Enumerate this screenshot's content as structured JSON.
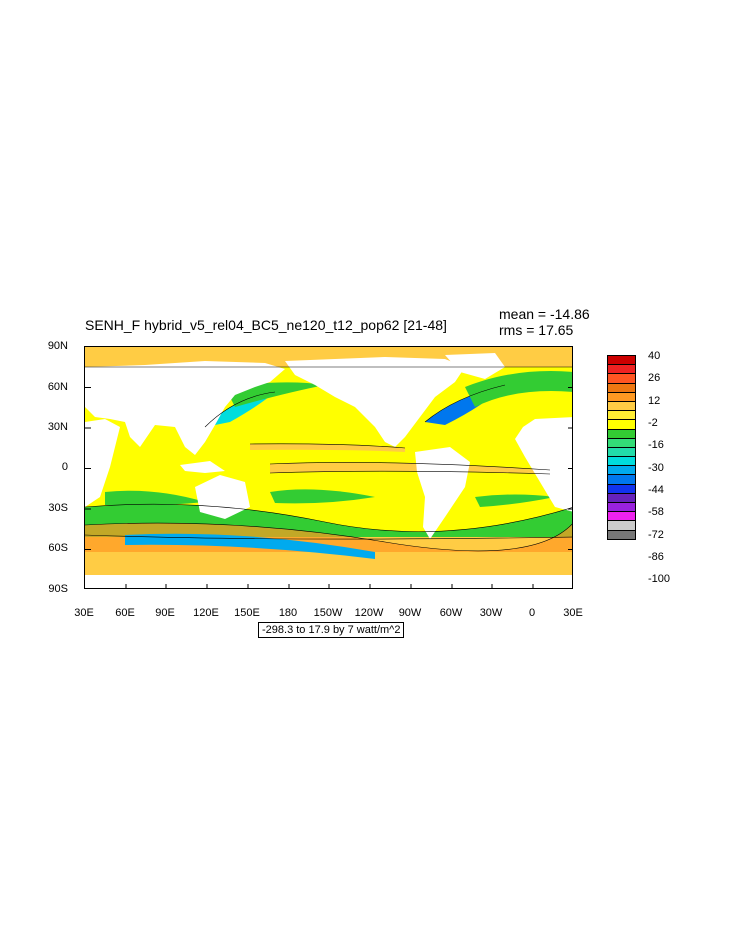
{
  "plot": {
    "title": "SENH_F hybrid_v5_rel04_BC5_ne120_t12_pop62 [21-48]",
    "mean": "mean = -14.86",
    "rms": "rms = 17.65",
    "range_label": "-298.3 to 17.9 by 7 watt/m^2"
  },
  "map": {
    "type": "global-contour-map",
    "lat_ticks": [
      "90N",
      "60N",
      "30N",
      "0",
      "30S",
      "60S",
      "90S"
    ],
    "lon_ticks": [
      "30E",
      "60E",
      "90E",
      "120E",
      "150E",
      "180",
      "150W",
      "120W",
      "90W",
      "60W",
      "30W",
      "0",
      "30E"
    ],
    "lon_range": "30E to 30E (360)",
    "lat_range": "90S to 90N",
    "land_color": "#ffffff",
    "ocean_dominant_color": "#ffff00"
  },
  "colorbar": {
    "labels": [
      "40",
      "26",
      "12",
      "-2",
      "-16",
      "-30",
      "-44",
      "-58",
      "-72",
      "-86",
      "-100"
    ],
    "colors": [
      "#cc0000",
      "#ee2222",
      "#ff5522",
      "#ee7711",
      "#ff9922",
      "#ffcc44",
      "#ffee33",
      "#ffff00",
      "#33cc33",
      "#33dd77",
      "#22ddaa",
      "#00dddd",
      "#00aaee",
      "#0077ee",
      "#1133ee",
      "#6622bb",
      "#9922dd",
      "#ee22ee",
      "#cccccc",
      "#777777"
    ]
  }
}
